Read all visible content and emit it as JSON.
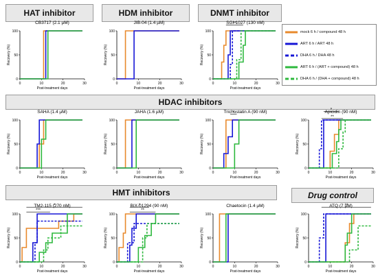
{
  "sections": {
    "hat": "HAT inhibitor",
    "hdm": "HDM inhibitor",
    "dnmt": "DNMT inhibitor",
    "hdac": "HDAC inhibitors",
    "hmt": "HMT inhibitors",
    "drug": "Drug control"
  },
  "legend": [
    {
      "label": "mock 6 h / compound 48 h",
      "color": "#E8892B",
      "dash": false
    },
    {
      "label": "ART 6 h / ART 48 h",
      "color": "#1515D6",
      "dash": false
    },
    {
      "label": "DHA 6 h / DHA 48 h",
      "color": "#1515D6",
      "dash": true
    },
    {
      "label": "ART 6 h / (ART + compound) 48 h",
      "color": "#2DB83D",
      "dash": false
    },
    {
      "label": "DHA 6 h / (DHA + compound) 48 h",
      "color": "#2DB83D",
      "dash": true
    }
  ],
  "colors": {
    "mock": "#E8892B",
    "art": "#1515D6",
    "combo": "#2DB83D"
  },
  "chart_data": [
    {
      "type": "line",
      "title": "CB3717 (2.1 µM)",
      "xlabel": "Post-treatment days",
      "ylabel": "Recovery (%)",
      "xlim": [
        0,
        30
      ],
      "ylim": [
        0,
        100
      ],
      "xticks": [
        0,
        10,
        20,
        30
      ],
      "yticks": [
        0,
        50,
        100
      ],
      "series": [
        {
          "key": "mock",
          "x": [
            11
          ],
          "y": [
            100
          ]
        },
        {
          "key": "art",
          "x": [
            12
          ],
          "y": [
            100
          ]
        },
        {
          "key": "combo",
          "x": [
            13
          ],
          "y": [
            100
          ]
        }
      ],
      "annotations": []
    },
    {
      "type": "line",
      "title": "JIB-04 (1.4 µM)",
      "xlabel": "Post-treatment days",
      "ylabel": "Recovery (%)",
      "xlim": [
        0,
        30
      ],
      "ylim": [
        0,
        100
      ],
      "xticks": [
        0,
        10,
        20,
        30
      ],
      "yticks": [
        0,
        50,
        100
      ],
      "series": [
        {
          "key": "mock",
          "x": [
            4
          ],
          "y": [
            100
          ]
        },
        {
          "key": "art",
          "x": [
            8
          ],
          "y": [
            100
          ]
        }
      ],
      "annotations": []
    },
    {
      "type": "line",
      "title": "SGI-1027 (130 nM)",
      "xlabel": "Post-treatment days",
      "ylabel": "Recovery (%)",
      "xlim": [
        0,
        30
      ],
      "ylim": [
        0,
        100
      ],
      "xticks": [
        0,
        10,
        20,
        30
      ],
      "yticks": [
        0,
        50,
        100
      ],
      "series": [
        {
          "key": "mock",
          "x": [
            4,
            5,
            6
          ],
          "y": [
            35,
            70,
            100
          ]
        },
        {
          "key": "art",
          "x": [
            7,
            8
          ],
          "y": [
            50,
            100
          ]
        },
        {
          "key": "dha",
          "x": [
            8,
            9
          ],
          "y": [
            30,
            100
          ]
        },
        {
          "key": "combo",
          "x": [
            12,
            14,
            15
          ],
          "y": [
            35,
            70,
            100
          ]
        },
        {
          "key": "dcombo",
          "x": [
            11,
            13
          ],
          "y": [
            40,
            100
          ]
        }
      ],
      "annotations": [
        {
          "text": "**",
          "x1": 6,
          "x2": 14,
          "y": 112
        }
      ]
    },
    {
      "type": "line",
      "title": "SAHA (1.4 µM)",
      "xlabel": "Post-treatment days",
      "ylabel": "Recovery (%)",
      "xlim": [
        0,
        30
      ],
      "ylim": [
        0,
        100
      ],
      "xticks": [
        0,
        10,
        20,
        30
      ],
      "yticks": [
        0,
        50,
        100
      ],
      "series": [
        {
          "key": "mock",
          "x": [
            9,
            11
          ],
          "y": [
            50,
            100
          ]
        },
        {
          "key": "art",
          "x": [
            8,
            9
          ],
          "y": [
            50,
            100
          ]
        },
        {
          "key": "combo",
          "x": [
            10,
            12
          ],
          "y": [
            60,
            100
          ]
        }
      ],
      "annotations": []
    },
    {
      "type": "line",
      "title": "JAHA (1.6 µM)",
      "xlabel": "Post-treatment days",
      "ylabel": "Recovery (%)",
      "xlim": [
        0,
        30
      ],
      "ylim": [
        0,
        100
      ],
      "xticks": [
        0,
        10,
        20,
        30
      ],
      "yticks": [
        0,
        50,
        100
      ],
      "series": [
        {
          "key": "mock",
          "x": [
            4
          ],
          "y": [
            100
          ]
        },
        {
          "key": "art",
          "x": [
            7
          ],
          "y": [
            100
          ]
        },
        {
          "key": "combo",
          "x": [
            9
          ],
          "y": [
            100
          ]
        }
      ],
      "annotations": []
    },
    {
      "type": "line",
      "title": "Trichostatin A (90 nM)",
      "xlabel": "Post-treatment days",
      "ylabel": "Recovery (%)",
      "xlim": [
        0,
        30
      ],
      "ylim": [
        0,
        100
      ],
      "xticks": [
        0,
        10,
        20,
        30
      ],
      "yticks": [
        0,
        50,
        100
      ],
      "series": [
        {
          "key": "mock",
          "x": [
            6
          ],
          "y": [
            100
          ]
        },
        {
          "key": "art",
          "x": [
            5,
            7,
            9
          ],
          "y": [
            30,
            65,
            100
          ]
        },
        {
          "key": "combo",
          "x": [
            10,
            12
          ],
          "y": [
            50,
            100
          ]
        }
      ],
      "annotations": [
        {
          "text": "*",
          "x1": 8,
          "x2": 11,
          "y": 112
        }
      ]
    },
    {
      "type": "line",
      "title": "Apicidin (90 nM)",
      "xlabel": "Post-treatment days",
      "ylabel": "Recovery (%)",
      "xlim": [
        0,
        30
      ],
      "ylim": [
        0,
        100
      ],
      "xticks": [
        0,
        10,
        20,
        30
      ],
      "yticks": [
        0,
        50,
        100
      ],
      "series": [
        {
          "key": "mock",
          "x": [
            10,
            12,
            14
          ],
          "y": [
            35,
            70,
            100
          ]
        },
        {
          "key": "art",
          "x": [
            7
          ],
          "y": [
            100
          ]
        },
        {
          "key": "dha",
          "x": [
            5,
            6
          ],
          "y": [
            40,
            100
          ]
        },
        {
          "key": "combo",
          "x": [
            11,
            13,
            14,
            15
          ],
          "y": [
            30,
            55,
            80,
            100
          ]
        },
        {
          "key": "dcombo",
          "x": [
            14,
            16,
            17
          ],
          "y": [
            40,
            75,
            100
          ]
        }
      ],
      "annotations": [
        {
          "text": "*",
          "x1": 7,
          "x2": 14,
          "y": 118
        },
        {
          "text": "**",
          "x1": 6,
          "x2": 16,
          "y": 103
        }
      ]
    },
    {
      "type": "line",
      "title": "TM2-115 (270 nM)",
      "xlabel": "Post-treatment days",
      "ylabel": "Recovery (%)",
      "xlim": [
        0,
        30
      ],
      "ylim": [
        0,
        100
      ],
      "xticks": [
        0,
        10,
        20,
        30
      ],
      "yticks": [
        0,
        50,
        100
      ],
      "series": [
        {
          "key": "mock",
          "x": [
            1,
            3,
            18,
            25
          ],
          "y": [
            30,
            70,
            85,
            100
          ]
        },
        {
          "key": "art",
          "x": [
            6,
            8
          ],
          "y": [
            40,
            100
          ]
        },
        {
          "key": "dha",
          "x": [
            7,
            8
          ],
          "y": [
            40,
            85
          ]
        },
        {
          "key": "combo",
          "x": [
            9,
            12,
            15,
            22
          ],
          "y": [
            20,
            40,
            60,
            100
          ]
        },
        {
          "key": "dcombo",
          "x": [
            11,
            13,
            19,
            27
          ],
          "y": [
            25,
            50,
            75,
            75
          ]
        }
      ],
      "annotations": [
        {
          "text": "*",
          "x1": 3,
          "x2": 29,
          "y": 114
        },
        {
          "text": "***",
          "x1": 3,
          "x2": 14,
          "y": 104
        }
      ]
    },
    {
      "type": "line",
      "title": "BIX-01294 (90 nM)",
      "xlabel": "Post-treatment days",
      "ylabel": "Recovery (%)",
      "xlim": [
        0,
        30
      ],
      "ylim": [
        0,
        100
      ],
      "xticks": [
        0,
        10,
        20,
        30
      ],
      "yticks": [
        0,
        50,
        100
      ],
      "series": [
        {
          "key": "mock",
          "x": [
            1,
            3,
            4
          ],
          "y": [
            30,
            60,
            100
          ]
        },
        {
          "key": "art",
          "x": [
            6,
            7,
            9
          ],
          "y": [
            35,
            70,
            100
          ]
        },
        {
          "key": "dha",
          "x": [
            5,
            8
          ],
          "y": [
            40,
            80
          ]
        },
        {
          "key": "combo",
          "x": [
            10,
            13,
            16,
            18
          ],
          "y": [
            30,
            55,
            80,
            100
          ]
        },
        {
          "key": "dcombo",
          "x": [
            12,
            14
          ],
          "y": [
            50,
            80
          ]
        }
      ],
      "annotations": [
        {
          "text": "*",
          "x1": 6,
          "x2": 15,
          "y": 114
        },
        {
          "text": "**",
          "x1": 6,
          "x2": 18,
          "y": 104
        }
      ]
    },
    {
      "type": "line",
      "title": "Chaetocin (1.4 µM)",
      "xlabel": "Post-treatment days",
      "ylabel": "Recovery (%)",
      "xlim": [
        0,
        30
      ],
      "ylim": [
        0,
        100
      ],
      "xticks": [
        0,
        10,
        20,
        30
      ],
      "yticks": [
        0,
        50,
        100
      ],
      "series": [
        {
          "key": "mock",
          "x": [
            3
          ],
          "y": [
            100
          ]
        },
        {
          "key": "art",
          "x": [
            7
          ],
          "y": [
            100
          ]
        },
        {
          "key": "combo",
          "x": [
            6
          ],
          "y": [
            100
          ]
        }
      ],
      "annotations": []
    },
    {
      "type": "line",
      "title": "ATQ (7 µM)",
      "xlabel": "Post-treatment days",
      "ylabel": "Recovery (%)",
      "xlim": [
        0,
        30
      ],
      "ylim": [
        0,
        100
      ],
      "xticks": [
        0,
        10,
        20,
        30
      ],
      "yticks": [
        0,
        50,
        100
      ],
      "series": [
        {
          "key": "mock",
          "x": [
            17,
            19,
            21
          ],
          "y": [
            40,
            80,
            100
          ]
        },
        {
          "key": "art",
          "x": [
            8
          ],
          "y": [
            100
          ]
        },
        {
          "key": "dha",
          "x": [
            5,
            7
          ],
          "y": [
            50,
            100
          ]
        },
        {
          "key": "combo",
          "x": [
            17,
            18,
            20
          ],
          "y": [
            35,
            60,
            100
          ]
        },
        {
          "key": "dcombo",
          "x": [
            19,
            23,
            29
          ],
          "y": [
            25,
            75,
            75
          ]
        }
      ],
      "annotations": [
        {
          "text": "**",
          "x1": 6,
          "x2": 29,
          "y": 114
        }
      ]
    }
  ]
}
